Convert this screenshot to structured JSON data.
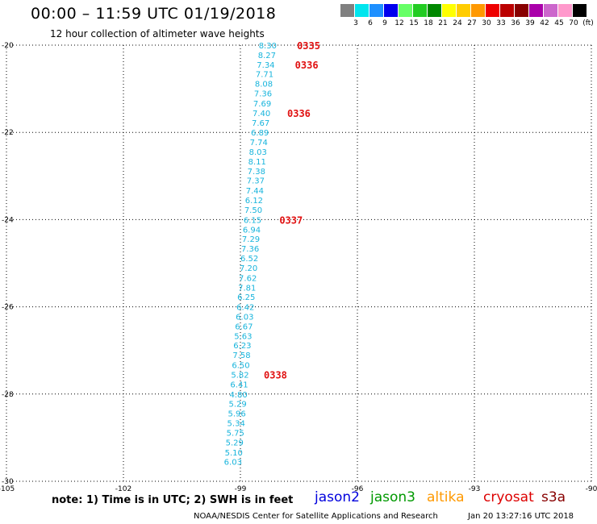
{
  "header": {
    "title": "00:00 – 11:59 UTC 01/19/2018",
    "subtitle": "12 hour collection of altimeter wave heights"
  },
  "legend": {
    "colors": [
      "#808080",
      "#00e5ee",
      "#1e90ff",
      "#0000ee",
      "#66ff66",
      "#22cc22",
      "#008800",
      "#ffff00",
      "#ffcc00",
      "#ff9900",
      "#ee0000",
      "#bb0000",
      "#880000",
      "#aa00aa",
      "#cc66cc",
      "#ff99cc",
      "#000000"
    ],
    "labels": [
      "3",
      "6",
      "9",
      "12",
      "15",
      "18",
      "21",
      "24",
      "27",
      "30",
      "33",
      "36",
      "39",
      "42",
      "45",
      "70",
      "(ft)"
    ]
  },
  "chart_data": {
    "type": "scatter",
    "xlim": [
      -105,
      -90
    ],
    "ylim": [
      -30,
      -20
    ],
    "x_ticks": [
      -105,
      -102,
      -99,
      -96,
      -93,
      -90
    ],
    "x_tick_labels": [
      "-105",
      "-102",
      "-99",
      "-96",
      "-93",
      "-90"
    ],
    "y_ticks": [
      -20,
      -22,
      -24,
      -26,
      -28,
      -30
    ],
    "y_tick_labels": [
      "-20",
      "-22",
      "-24",
      "-26",
      "-28",
      "-30"
    ],
    "grid": true,
    "series": [
      {
        "color": "#17b4dc",
        "points": [
          {
            "lon": -98.3,
            "lat": -20.0,
            "swh": "8.30"
          },
          {
            "lon": -98.32,
            "lat": -20.22,
            "swh": "8.27"
          },
          {
            "lon": -98.35,
            "lat": -20.44,
            "swh": "7.34"
          },
          {
            "lon": -98.38,
            "lat": -20.66,
            "swh": "7.71"
          },
          {
            "lon": -98.4,
            "lat": -20.88,
            "swh": "8.08"
          },
          {
            "lon": -98.42,
            "lat": -21.1,
            "swh": "7.36"
          },
          {
            "lon": -98.44,
            "lat": -21.33,
            "swh": "7.69"
          },
          {
            "lon": -98.46,
            "lat": -21.55,
            "swh": "7.40"
          },
          {
            "lon": -98.48,
            "lat": -21.77,
            "swh": "7.67"
          },
          {
            "lon": -98.5,
            "lat": -22.0,
            "swh": "6.89"
          },
          {
            "lon": -98.53,
            "lat": -22.22,
            "swh": "7.74"
          },
          {
            "lon": -98.55,
            "lat": -22.44,
            "swh": "8.03"
          },
          {
            "lon": -98.57,
            "lat": -22.66,
            "swh": "8.11"
          },
          {
            "lon": -98.59,
            "lat": -22.88,
            "swh": "7.38"
          },
          {
            "lon": -98.61,
            "lat": -23.1,
            "swh": "7.37"
          },
          {
            "lon": -98.63,
            "lat": -23.33,
            "swh": "7.44"
          },
          {
            "lon": -98.65,
            "lat": -23.55,
            "swh": "6.12"
          },
          {
            "lon": -98.67,
            "lat": -23.77,
            "swh": "7.50"
          },
          {
            "lon": -98.69,
            "lat": -24.0,
            "swh": "6.15"
          },
          {
            "lon": -98.71,
            "lat": -24.22,
            "swh": "6.94"
          },
          {
            "lon": -98.73,
            "lat": -24.44,
            "swh": "7.29"
          },
          {
            "lon": -98.75,
            "lat": -24.66,
            "swh": "7.36"
          },
          {
            "lon": -98.77,
            "lat": -24.88,
            "swh": "6.52"
          },
          {
            "lon": -98.79,
            "lat": -25.1,
            "swh": "7.20"
          },
          {
            "lon": -98.81,
            "lat": -25.33,
            "swh": "7.62"
          },
          {
            "lon": -98.83,
            "lat": -25.55,
            "swh": "7.81"
          },
          {
            "lon": -98.85,
            "lat": -25.77,
            "swh": "6.25"
          },
          {
            "lon": -98.87,
            "lat": -26.0,
            "swh": "6.42"
          },
          {
            "lon": -98.89,
            "lat": -26.22,
            "swh": "6.03"
          },
          {
            "lon": -98.91,
            "lat": -26.44,
            "swh": "6.67"
          },
          {
            "lon": -98.93,
            "lat": -26.66,
            "swh": "5.63"
          },
          {
            "lon": -98.95,
            "lat": -26.88,
            "swh": "6.23"
          },
          {
            "lon": -98.97,
            "lat": -27.1,
            "swh": "7.58"
          },
          {
            "lon": -98.99,
            "lat": -27.33,
            "swh": "6.50"
          },
          {
            "lon": -99.01,
            "lat": -27.55,
            "swh": "5.82"
          },
          {
            "lon": -99.03,
            "lat": -27.77,
            "swh": "6.41"
          },
          {
            "lon": -99.05,
            "lat": -28.0,
            "swh": "4.80"
          },
          {
            "lon": -99.07,
            "lat": -28.22,
            "swh": "5.29"
          },
          {
            "lon": -99.09,
            "lat": -28.44,
            "swh": "5.96"
          },
          {
            "lon": -99.11,
            "lat": -28.66,
            "swh": "5.34"
          },
          {
            "lon": -99.13,
            "lat": -28.88,
            "swh": "5.75"
          },
          {
            "lon": -99.15,
            "lat": -29.1,
            "swh": "5.29"
          },
          {
            "lon": -99.17,
            "lat": -29.33,
            "swh": "5.10"
          },
          {
            "lon": -99.19,
            "lat": -29.55,
            "swh": "6.03"
          }
        ]
      }
    ],
    "time_labels": [
      {
        "lon": -97.55,
        "lat": -20.0,
        "text": "0335"
      },
      {
        "lon": -97.6,
        "lat": -20.44,
        "text": "0336"
      },
      {
        "lon": -97.8,
        "lat": -21.55,
        "text": "0336"
      },
      {
        "lon": -98.0,
        "lat": -24.0,
        "text": "0337"
      },
      {
        "lon": -98.4,
        "lat": -27.55,
        "text": "0338"
      }
    ]
  },
  "footer": {
    "note": "note: 1) Time is in UTC; 2) SWH is in feet",
    "satellites": [
      {
        "name": "jason2",
        "color": "#0000dd"
      },
      {
        "name": "jason3",
        "color": "#009900"
      },
      {
        "name": "altika",
        "color": "#ff9900"
      },
      {
        "name": "cryosat",
        "color": "#dd0000"
      },
      {
        "name": "s3a",
        "color": "#880000"
      }
    ],
    "credit": "NOAA/NESDIS Center for Satellite Applications and Research",
    "timestamp": "Jan 20 13:27:16 UTC 2018"
  }
}
